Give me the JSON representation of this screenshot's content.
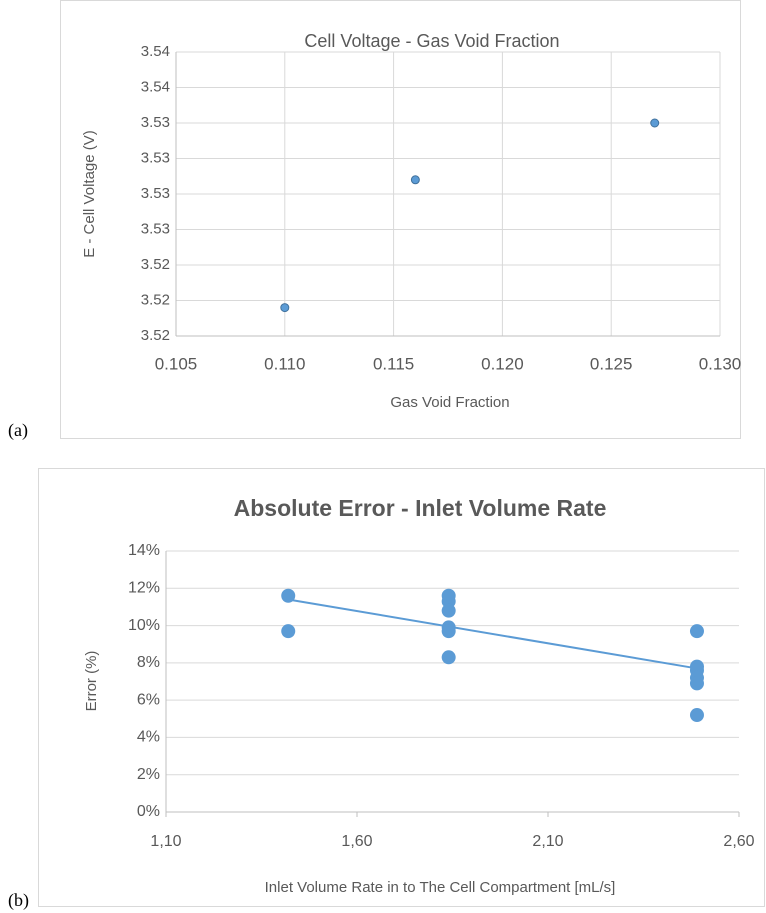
{
  "chart_data": [
    {
      "type": "scatter",
      "panel_label": "(a)",
      "title": "Cell Voltage - Gas Void Fraction",
      "x_label": "Gas Void Fraction",
      "y_label": "E - Cell Voltage (V)",
      "x": [
        0.11,
        0.116,
        0.127
      ],
      "values": [
        3.5195,
        3.5285,
        3.5325
      ],
      "color": "#5b9bd5",
      "grid": true,
      "vgrid": true,
      "xlim": [
        0.105,
        0.13
      ],
      "xticks": [
        0.105,
        {
          "value": 0.11,
          "label": "0.110"
        },
        0.115,
        {
          "value": 0.12,
          "label": "0.120"
        },
        0.125,
        {
          "value": 0.13,
          "label": "0.130"
        }
      ],
      "ylim": [
        3.5175,
        3.5375
      ],
      "yticks": [
        {
          "value": 3.5175,
          "label": "3.52"
        },
        {
          "value": 3.52,
          "label": "3.52"
        },
        {
          "value": 3.5225,
          "label": "3.52"
        },
        {
          "value": 3.525,
          "label": "3.53"
        },
        {
          "value": 3.5275,
          "label": "3.53"
        },
        {
          "value": 3.53,
          "label": "3.53"
        },
        {
          "value": 3.5325,
          "label": "3.53"
        },
        {
          "value": 3.535,
          "label": "3.54"
        },
        {
          "value": 3.5375,
          "label": "3.54"
        }
      ]
    },
    {
      "type": "scatter",
      "panel_label": "(b)",
      "title": "Absolute Error - Inlet Volume Rate",
      "x_label": "Inlet Volume Rate in to The Cell Compartment [mL/s]",
      "y_label": "Error (%)",
      "x": [
        1.42,
        1.42,
        1.84,
        1.84,
        1.84,
        1.84,
        1.84,
        1.84,
        2.49,
        2.49,
        2.49,
        2.49,
        2.49,
        2.49
      ],
      "values": [
        11.6,
        9.7,
        11.6,
        11.3,
        10.8,
        9.9,
        9.7,
        8.3,
        9.7,
        7.8,
        7.6,
        7.2,
        6.9,
        5.2
      ],
      "trendline": {
        "x": [
          1.42,
          2.49
        ],
        "values": [
          11.4,
          7.7
        ]
      },
      "color": "#5b9bd5",
      "grid": true,
      "vgrid": false,
      "xlim": [
        1.1,
        2.6
      ],
      "xticks": [
        {
          "value": 1.1,
          "label": "1,10"
        },
        {
          "value": 1.6,
          "label": "1,60"
        },
        {
          "value": 2.1,
          "label": "2,10"
        },
        {
          "value": 2.6,
          "label": "2,60"
        }
      ],
      "ylim": [
        0,
        14
      ],
      "yticks": [
        {
          "value": 0,
          "label": "0%"
        },
        {
          "value": 2,
          "label": "2%"
        },
        {
          "value": 4,
          "label": "4%"
        },
        {
          "value": 6,
          "label": "6%"
        },
        {
          "value": 8,
          "label": "8%"
        },
        {
          "value": 10,
          "label": "10%"
        },
        {
          "value": 12,
          "label": "12%"
        },
        {
          "value": 14,
          "label": "14%"
        }
      ]
    }
  ]
}
